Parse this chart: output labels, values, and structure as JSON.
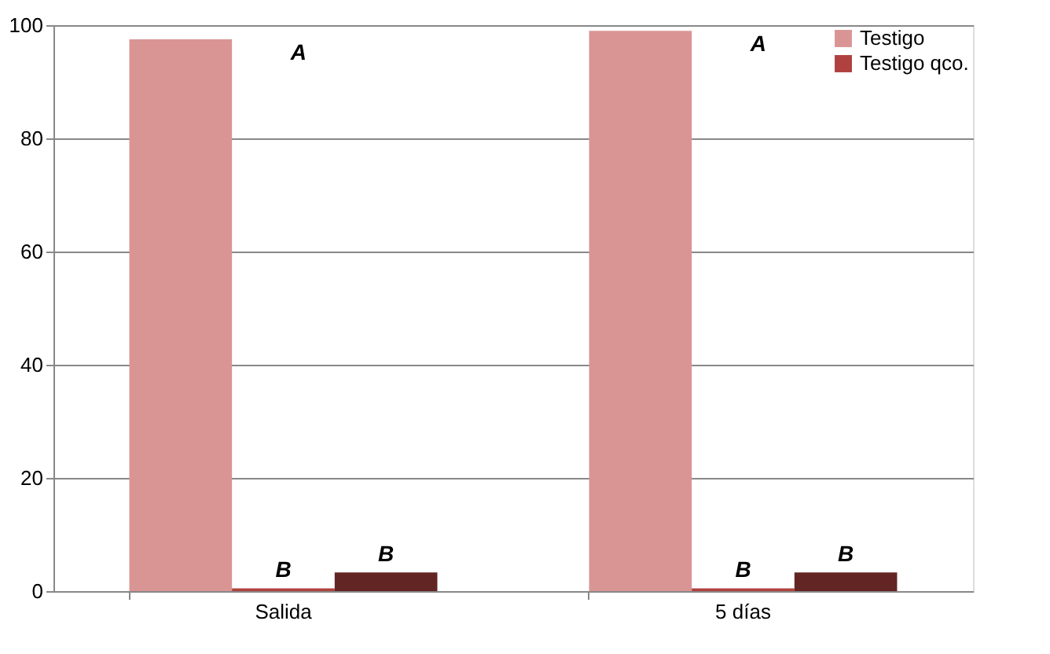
{
  "chart_data": {
    "type": "bar",
    "categories": [
      "Salida",
      "5 días"
    ],
    "series": [
      {
        "name": "Testigo",
        "color": "#d99594",
        "values": [
          97.5,
          99
        ]
      },
      {
        "name": "Testigo qco.",
        "color": "#b0413e",
        "values": [
          0.5,
          0.5
        ]
      },
      {
        "color": "#632523",
        "values": [
          3.3,
          3.3
        ]
      }
    ],
    "ylim": [
      0,
      100
    ],
    "yticks": [
      0,
      20,
      40,
      60,
      80,
      100
    ],
    "grid": "y",
    "legend": "top right",
    "annotations": [
      "A",
      "B",
      "B",
      "A",
      "B",
      "B"
    ]
  }
}
